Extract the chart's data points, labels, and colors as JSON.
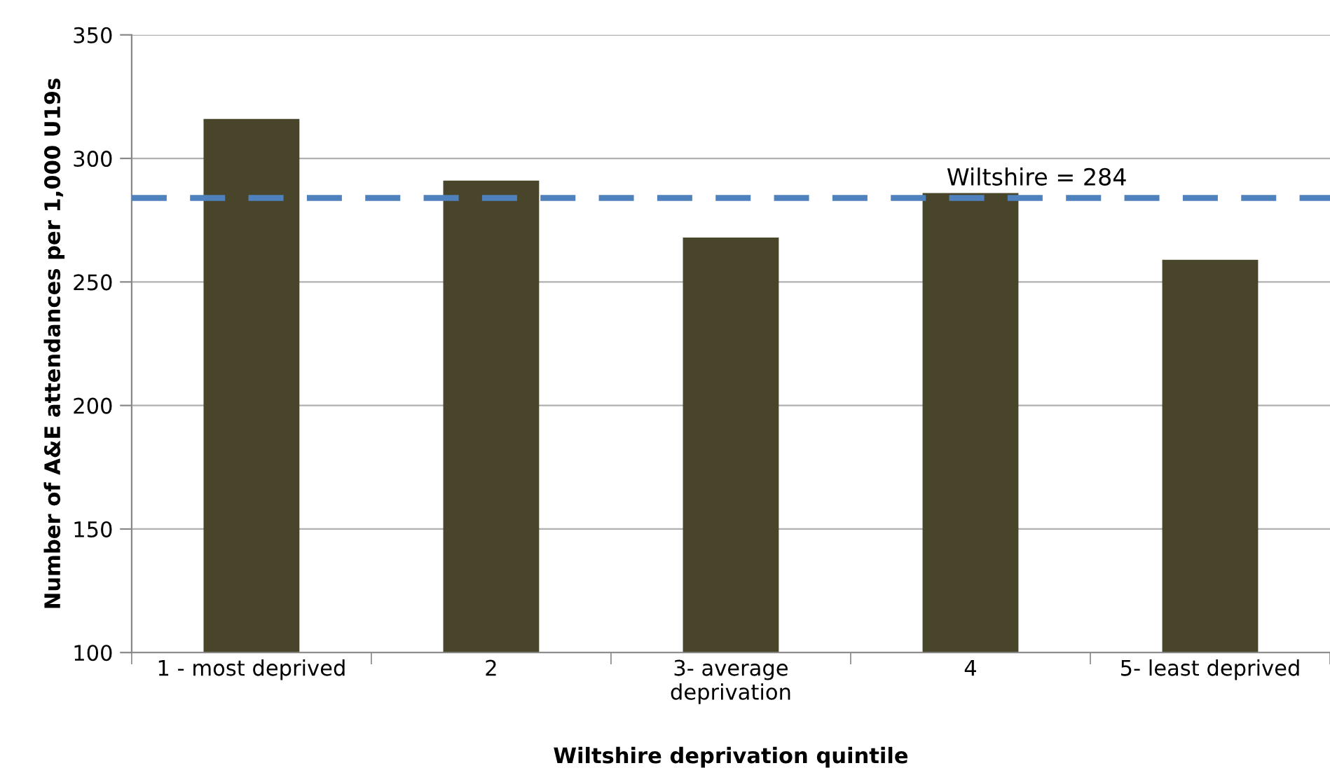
{
  "chart_data": {
    "type": "bar",
    "xlabel": "Wiltshire deprivation quintile",
    "ylabel": "Number of A&E attendances per 1,000 U19s",
    "categories": [
      "1 - most deprived",
      "2",
      "3- average\ndeprivation",
      "4",
      "5- least deprived"
    ],
    "values": [
      316,
      291,
      268,
      286,
      259
    ],
    "color": "#49452b",
    "ylim": [
      100,
      350
    ],
    "yticks": [
      100,
      150,
      200,
      250,
      300,
      350
    ],
    "grid": "y",
    "ref_lines": [
      {
        "axis": "y",
        "value": 284,
        "label": "Wiltshire = 284",
        "color": "#4f81bd",
        "line_style": "dashed"
      }
    ]
  }
}
